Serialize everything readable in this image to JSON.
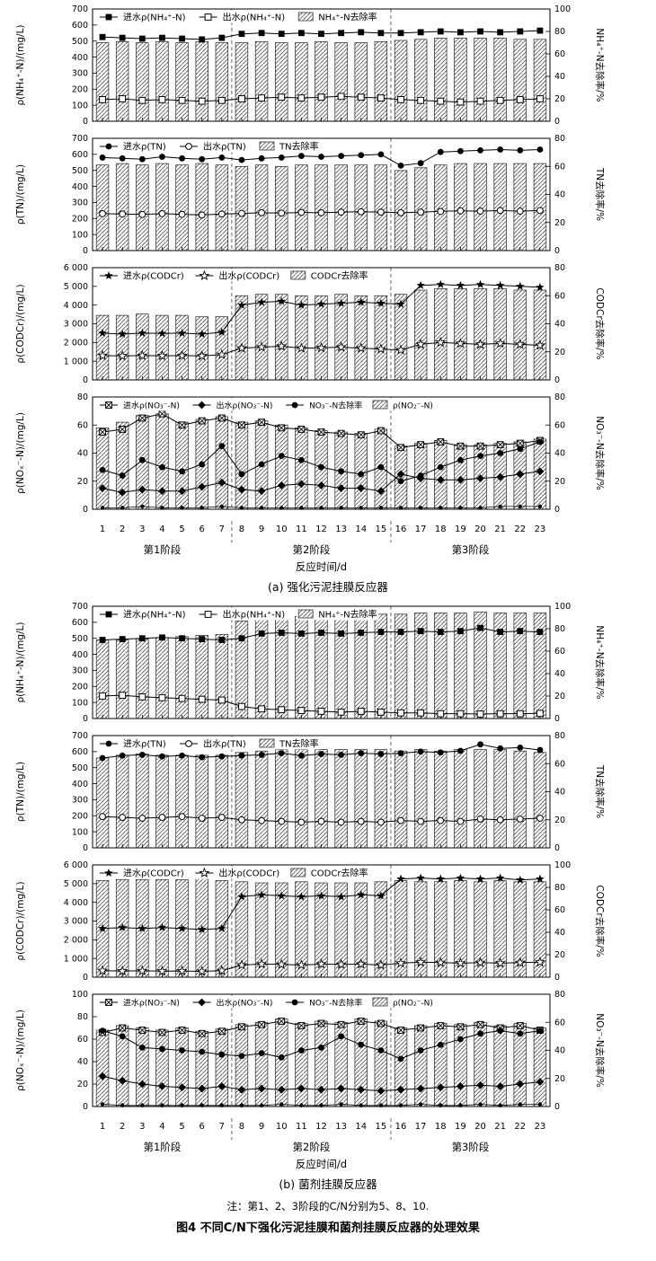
{
  "page": {
    "caption_a": "(a) 强化污泥挂膜反应器",
    "caption_b": "(b) 菌剂挂膜反应器",
    "note": "注：第1、2、3阶段的C/N分别为5、8、10.",
    "figure_title": "图4 不同C/N下强化污泥挂膜和菌剂挂膜反应器的处理效果",
    "xlabel": "反应时间/d",
    "days": [
      1,
      2,
      3,
      4,
      5,
      6,
      7,
      8,
      9,
      10,
      11,
      12,
      13,
      14,
      15,
      16,
      17,
      18,
      19,
      20,
      21,
      22,
      23
    ],
    "stages": [
      {
        "label": "第1阶段",
        "from": 1,
        "to": 7
      },
      {
        "label": "第2阶段",
        "from": 8,
        "to": 15
      },
      {
        "label": "第3阶段",
        "from": 16,
        "to": 23
      }
    ]
  },
  "chart_data": [
    {
      "id": "a1",
      "type": "bar",
      "left_axis": {
        "label": "ρ(NH₄⁺-N)/(mg/L)",
        "min": 0,
        "max": 700,
        "step": 100
      },
      "right_axis": {
        "label": "NH₄⁺-N去除率/%",
        "min": 0,
        "max": 100,
        "step": 20
      },
      "legend": [
        {
          "marker": "squareFilled",
          "label": "进水ρ(NH₄⁺-N)"
        },
        {
          "marker": "squareOpen",
          "label": "出水ρ(NH₄⁺-N)"
        },
        {
          "marker": "hatch",
          "label": "NH₄⁺-N去除率"
        }
      ],
      "bars": {
        "name": "nh4-removal-rate",
        "axis": "right",
        "values": [
          70,
          71,
          70,
          71,
          70,
          71,
          70,
          70,
          71,
          70,
          70,
          71,
          70,
          70,
          71,
          72,
          73,
          74,
          74,
          74,
          74,
          73,
          73
        ]
      },
      "series": [
        {
          "name": "influent-nh4",
          "marker": "squareFilled",
          "axis": "left",
          "values": [
            525,
            520,
            515,
            520,
            515,
            510,
            520,
            545,
            550,
            545,
            550,
            545,
            550,
            555,
            550,
            550,
            555,
            560,
            555,
            560,
            555,
            560,
            565
          ]
        },
        {
          "name": "effluent-nh4",
          "marker": "squareOpen",
          "axis": "left",
          "values": [
            135,
            140,
            130,
            135,
            130,
            125,
            130,
            140,
            145,
            150,
            145,
            150,
            155,
            150,
            145,
            135,
            130,
            125,
            120,
            125,
            130,
            135,
            140
          ]
        }
      ]
    },
    {
      "id": "a2",
      "type": "bar",
      "left_axis": {
        "label": "ρ(TN)/(mg/L)",
        "min": 0,
        "max": 700,
        "step": 100
      },
      "right_axis": {
        "label": "TN去除率/%",
        "min": 0,
        "max": 80,
        "step": 20
      },
      "legend": [
        {
          "marker": "circleFilled",
          "label": "进水ρ(TN)"
        },
        {
          "marker": "circleOpen",
          "label": "出水ρ(TN)"
        },
        {
          "marker": "hatch",
          "label": "TN去除率"
        }
      ],
      "bars": {
        "name": "tn-removal-rate",
        "axis": "right",
        "values": [
          61,
          62,
          61,
          62,
          61,
          62,
          61,
          60,
          61,
          60,
          61,
          61,
          61,
          61,
          61,
          57,
          59,
          61,
          62,
          62,
          62,
          62,
          62
        ]
      },
      "series": [
        {
          "name": "influent-tn",
          "marker": "circleFilled",
          "axis": "left",
          "values": [
            580,
            575,
            570,
            585,
            575,
            570,
            580,
            565,
            575,
            580,
            590,
            585,
            590,
            595,
            600,
            530,
            545,
            615,
            620,
            625,
            630,
            625,
            630
          ]
        },
        {
          "name": "effluent-tn",
          "marker": "circleOpen",
          "axis": "left",
          "values": [
            230,
            228,
            225,
            230,
            226,
            222,
            228,
            232,
            236,
            234,
            238,
            236,
            240,
            242,
            240,
            236,
            240,
            244,
            248,
            246,
            250,
            246,
            250
          ]
        }
      ]
    },
    {
      "id": "a3",
      "type": "bar",
      "left_axis": {
        "label": "ρ(CODCr)/(mg/L)",
        "min": 0,
        "max": 6000,
        "step": 1000
      },
      "right_axis": {
        "label": "CODCr去除率/%",
        "min": 0,
        "max": 80,
        "step": 20
      },
      "legend": [
        {
          "marker": "starFilled",
          "label": "进水ρ(CODCr)"
        },
        {
          "marker": "starOpen",
          "label": "出水ρ(CODCr)"
        },
        {
          "marker": "hatch",
          "label": "CODCr去除率"
        }
      ],
      "bars": {
        "name": "cod-removal-rate",
        "axis": "right",
        "values": [
          46,
          46,
          47,
          46,
          46,
          45,
          45,
          60,
          61,
          61,
          60,
          60,
          61,
          60,
          60,
          61,
          64,
          65,
          65,
          65,
          65,
          64,
          64
        ]
      },
      "series": [
        {
          "name": "influent-cod",
          "marker": "starFilled",
          "axis": "left",
          "values": [
            2500,
            2450,
            2500,
            2480,
            2500,
            2450,
            2550,
            4000,
            4150,
            4200,
            4000,
            4050,
            4100,
            4150,
            4100,
            4050,
            5050,
            5100,
            5050,
            5100,
            5050,
            5000,
            4950
          ]
        },
        {
          "name": "effluent-cod",
          "marker": "starOpen",
          "axis": "left",
          "values": [
            1300,
            1280,
            1300,
            1290,
            1300,
            1280,
            1350,
            1700,
            1750,
            1800,
            1700,
            1720,
            1750,
            1700,
            1650,
            1600,
            1900,
            2000,
            1950,
            1900,
            1950,
            1900,
            1850
          ]
        }
      ]
    },
    {
      "id": "a4",
      "type": "bar",
      "left_axis": {
        "label": "ρ(NOₓ⁻-N)/(mg/L)",
        "min": 0,
        "max": 80,
        "step": 20
      },
      "right_axis": {
        "label": "NO₃⁻-N去除率/%",
        "min": 0,
        "max": 80,
        "step": 20
      },
      "legend": [
        {
          "marker": "squareCross",
          "label": "进水ρ(NO₃⁻-N)"
        },
        {
          "marker": "diamondFilled",
          "label": "出水ρ(NO₃⁻-N)"
        },
        {
          "marker": "circleFilled",
          "label": "NO₃⁻-N去除率"
        },
        {
          "marker": "hatch",
          "label": "ρ(NO₂⁻-N)"
        }
      ],
      "bars": {
        "name": "nox-bars",
        "axis": "left",
        "values": [
          58,
          62,
          67,
          68,
          62,
          64,
          66,
          62,
          63,
          60,
          58,
          56,
          55,
          54,
          57,
          45,
          47,
          49,
          46,
          46,
          47,
          48,
          50
        ]
      },
      "series": [
        {
          "name": "influent-no3",
          "marker": "squareCross",
          "axis": "left",
          "values": [
            55,
            57,
            65,
            68,
            60,
            63,
            65,
            60,
            62,
            58,
            57,
            55,
            54,
            53,
            56,
            44,
            46,
            48,
            45,
            45,
            46,
            47,
            49
          ]
        },
        {
          "name": "no3-removal-rate",
          "marker": "circleFilled",
          "axis": "right",
          "values": [
            28,
            24,
            35,
            30,
            27,
            32,
            45,
            25,
            32,
            38,
            35,
            30,
            27,
            25,
            30,
            20,
            24,
            30,
            35,
            38,
            40,
            43,
            48
          ]
        },
        {
          "name": "effluent-no3",
          "marker": "diamondFilled",
          "axis": "left",
          "values": [
            15,
            12,
            14,
            13,
            13,
            16,
            19,
            14,
            13,
            17,
            18,
            17,
            15,
            15,
            13,
            25,
            22,
            21,
            21,
            22,
            23,
            25,
            27
          ]
        },
        {
          "name": "nitrite",
          "marker": "circleFilled",
          "small": true,
          "axis": "left",
          "values": [
            1,
            1,
            2,
            1,
            1,
            1,
            2,
            1,
            1,
            1,
            1,
            1,
            1,
            1,
            1,
            1,
            1,
            1,
            1,
            1,
            2,
            2,
            2
          ]
        }
      ]
    },
    {
      "id": "b1",
      "type": "bar",
      "left_axis": {
        "label": "ρ(NH₄⁺-N)/(mg/L)",
        "min": 0,
        "max": 700,
        "step": 100
      },
      "right_axis": {
        "label": "NH₄⁺-N去除率/%",
        "min": 0,
        "max": 100,
        "step": 20
      },
      "legend": [
        {
          "marker": "squareFilled",
          "label": "进水ρ(NH₄⁺-N)"
        },
        {
          "marker": "squareOpen",
          "label": "出水ρ(NH₄⁺-N)"
        },
        {
          "marker": "hatch",
          "label": "NH₄⁺-N去除率"
        }
      ],
      "bars": {
        "name": "nh4-removal-rate",
        "axis": "right",
        "values": [
          70,
          70,
          71,
          72,
          73,
          74,
          75,
          87,
          89,
          90,
          91,
          92,
          92,
          92,
          93,
          93,
          94,
          94,
          94,
          95,
          94,
          94,
          94
        ]
      },
      "series": [
        {
          "name": "influent-nh4",
          "marker": "squareFilled",
          "axis": "left",
          "values": [
            490,
            495,
            500,
            505,
            500,
            495,
            490,
            500,
            530,
            535,
            530,
            535,
            530,
            535,
            540,
            540,
            545,
            540,
            545,
            565,
            540,
            545,
            540
          ]
        },
        {
          "name": "effluent-nh4",
          "marker": "squareOpen",
          "axis": "left",
          "values": [
            140,
            145,
            135,
            130,
            125,
            120,
            115,
            75,
            60,
            55,
            50,
            45,
            40,
            45,
            40,
            35,
            35,
            30,
            30,
            28,
            30,
            30,
            32
          ]
        }
      ]
    },
    {
      "id": "b2",
      "type": "bar",
      "left_axis": {
        "label": "ρ(TN)/(mg/L)",
        "min": 0,
        "max": 700,
        "step": 100
      },
      "right_axis": {
        "label": "TN去除率/%",
        "min": 0,
        "max": 80,
        "step": 20
      },
      "legend": [
        {
          "marker": "circleFilled",
          "label": "进水ρ(TN)"
        },
        {
          "marker": "circleOpen",
          "label": "出水ρ(TN)"
        },
        {
          "marker": "hatch",
          "label": "TN去除率"
        }
      ],
      "bars": {
        "name": "tn-removal-rate",
        "axis": "right",
        "values": [
          64,
          66,
          67,
          66,
          66,
          66,
          66,
          68,
          69,
          70,
          70,
          70,
          70,
          70,
          70,
          69,
          70,
          69,
          70,
          70,
          70,
          69,
          68
        ]
      },
      "series": [
        {
          "name": "influent-tn",
          "marker": "circleFilled",
          "axis": "left",
          "values": [
            560,
            575,
            580,
            570,
            575,
            565,
            570,
            575,
            580,
            590,
            575,
            585,
            580,
            590,
            585,
            590,
            600,
            595,
            605,
            645,
            620,
            625,
            610
          ]
        },
        {
          "name": "effluent-tn",
          "marker": "circleOpen",
          "axis": "left",
          "values": [
            195,
            190,
            185,
            190,
            195,
            185,
            190,
            175,
            170,
            165,
            160,
            165,
            160,
            165,
            160,
            170,
            165,
            170,
            165,
            180,
            175,
            180,
            185
          ]
        }
      ]
    },
    {
      "id": "b3",
      "type": "bar",
      "left_axis": {
        "label": "ρ(CODCr)/(mg/L)",
        "min": 0,
        "max": 6000,
        "step": 1000
      },
      "right_axis": {
        "label": "CODCr去除率/%",
        "min": 0,
        "max": 100,
        "step": 20
      },
      "legend": [
        {
          "marker": "starFilled",
          "label": "进水ρ(CODCr)"
        },
        {
          "marker": "starOpen",
          "label": "出水ρ(CODCr)"
        },
        {
          "marker": "hatch",
          "label": "CODCr去除率"
        }
      ],
      "bars": {
        "name": "cod-removal-rate",
        "axis": "right",
        "values": [
          86,
          87,
          87,
          87,
          87,
          88,
          86,
          85,
          84,
          84,
          85,
          84,
          84,
          84,
          85,
          86,
          85,
          85,
          86,
          85,
          86,
          85,
          85
        ]
      },
      "series": [
        {
          "name": "influent-cod",
          "marker": "starFilled",
          "axis": "left",
          "values": [
            2600,
            2650,
            2600,
            2650,
            2600,
            2550,
            2600,
            4300,
            4400,
            4350,
            4300,
            4350,
            4300,
            4400,
            4350,
            5250,
            5300,
            5250,
            5300,
            5250,
            5300,
            5200,
            5250
          ]
        },
        {
          "name": "effluent-cod",
          "marker": "starOpen",
          "axis": "left",
          "values": [
            350,
            330,
            340,
            320,
            330,
            310,
            350,
            650,
            700,
            680,
            650,
            700,
            680,
            700,
            650,
            750,
            800,
            780,
            750,
            780,
            750,
            780,
            800
          ]
        }
      ]
    },
    {
      "id": "b4",
      "type": "bar",
      "left_axis": {
        "label": "ρ(NOₓ⁻-N)/(mg/L)",
        "min": 0,
        "max": 100,
        "step": 20
      },
      "right_axis": {
        "label": "NO₃⁻-N去除率/%",
        "min": 0,
        "max": 80,
        "step": 20
      },
      "legend": [
        {
          "marker": "squareCross",
          "label": "进水ρ(NO₃⁻-N)"
        },
        {
          "marker": "diamondFilled",
          "label": "出水ρ(NO₃⁻-N)"
        },
        {
          "marker": "circleFilled",
          "label": "NO₃⁻-N去除率"
        },
        {
          "marker": "hatch",
          "label": "ρ(NO₂⁻-N)"
        }
      ],
      "bars": {
        "name": "nox-bars",
        "axis": "left",
        "values": [
          68,
          72,
          70,
          68,
          70,
          67,
          69,
          73,
          75,
          78,
          74,
          76,
          75,
          78,
          76,
          70,
          72,
          74,
          73,
          75,
          72,
          74,
          70
        ]
      },
      "series": [
        {
          "name": "influent-no3",
          "marker": "squareCross",
          "axis": "left",
          "values": [
            66,
            70,
            68,
            66,
            68,
            65,
            67,
            71,
            73,
            76,
            72,
            74,
            73,
            76,
            74,
            68,
            70,
            72,
            71,
            73,
            70,
            72,
            68
          ]
        },
        {
          "name": "no3-removal-rate",
          "marker": "circleFilled",
          "axis": "right",
          "values": [
            54,
            50,
            42,
            41,
            40,
            39,
            37,
            36,
            38,
            35,
            40,
            42,
            50,
            44,
            40,
            34,
            40,
            44,
            48,
            52,
            54,
            52,
            54
          ]
        },
        {
          "name": "effluent-no3",
          "marker": "diamondFilled",
          "axis": "left",
          "values": [
            27,
            23,
            20,
            18,
            17,
            16,
            18,
            15,
            16,
            15,
            16,
            15,
            16,
            15,
            14,
            15,
            16,
            17,
            18,
            19,
            18,
            20,
            22
          ]
        },
        {
          "name": "nitrite",
          "marker": "circleFilled",
          "small": true,
          "axis": "left",
          "values": [
            2,
            1,
            1,
            1,
            1,
            1,
            1,
            1,
            1,
            2,
            1,
            1,
            2,
            1,
            1,
            1,
            2,
            1,
            1,
            2,
            1,
            2,
            2
          ]
        }
      ]
    }
  ]
}
